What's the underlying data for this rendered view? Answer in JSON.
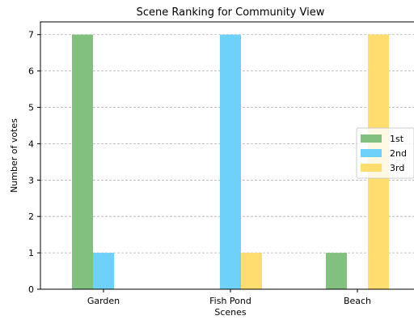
{
  "chart_data": {
    "type": "bar",
    "title": "Scene Ranking for Community View",
    "xlabel": "Scenes",
    "ylabel": "Number of votes",
    "categories": [
      "Garden",
      "Fish Pond",
      "Beach"
    ],
    "series": [
      {
        "name": "1st",
        "values": [
          7,
          0,
          1
        ],
        "color": "#81c07f"
      },
      {
        "name": "2nd",
        "values": [
          1,
          7,
          0
        ],
        "color": "#6dd1fa"
      },
      {
        "name": "3rd",
        "values": [
          0,
          1,
          7
        ],
        "color": "#ffdd6e"
      }
    ],
    "yticks": [
      0,
      1,
      2,
      3,
      4,
      5,
      6,
      7
    ],
    "ylim": [
      0,
      7.35
    ],
    "grid": "y-dashed",
    "legend": "center-right"
  }
}
